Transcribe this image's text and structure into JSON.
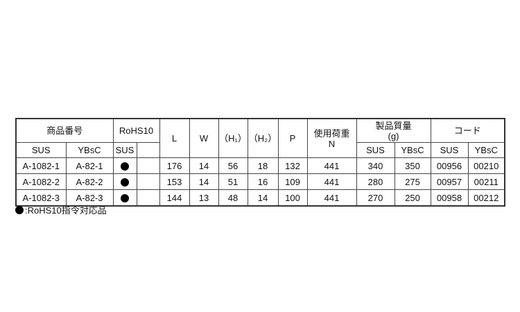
{
  "headers": {
    "product_number": "商品番号",
    "rohs": "RoHS10",
    "L": "L",
    "W": "W",
    "H1": "（H₁）",
    "H2": "（H₂）",
    "P": "P",
    "load": "使用荷重",
    "load_unit": "N",
    "mass": "製品質量",
    "mass_unit": "(g)",
    "code": "コード",
    "sus": "SUS",
    "ybsc": "YBsC"
  },
  "rows": [
    {
      "sus": "A-1082-1",
      "ybsc": "A-82-1",
      "rohs": true,
      "L": "176",
      "W": "14",
      "H1": "56",
      "H2": "18",
      "P": "132",
      "load": "441",
      "mass_sus": "340",
      "mass_ybsc": "350",
      "code_sus": "00956",
      "code_ybsc": "00210"
    },
    {
      "sus": "A-1082-2",
      "ybsc": "A-82-2",
      "rohs": true,
      "L": "153",
      "W": "14",
      "H1": "51",
      "H2": "16",
      "P": "109",
      "load": "441",
      "mass_sus": "280",
      "mass_ybsc": "275",
      "code_sus": "00957",
      "code_ybsc": "00211"
    },
    {
      "sus": "A-1082-3",
      "ybsc": "A-82-3",
      "rohs": true,
      "L": "144",
      "W": "13",
      "H1": "48",
      "H2": "14",
      "P": "100",
      "load": "441",
      "mass_sus": "270",
      "mass_ybsc": "250",
      "code_sus": "00958",
      "code_ybsc": "00212"
    }
  ],
  "footnote": ":RoHS10指令対応品"
}
